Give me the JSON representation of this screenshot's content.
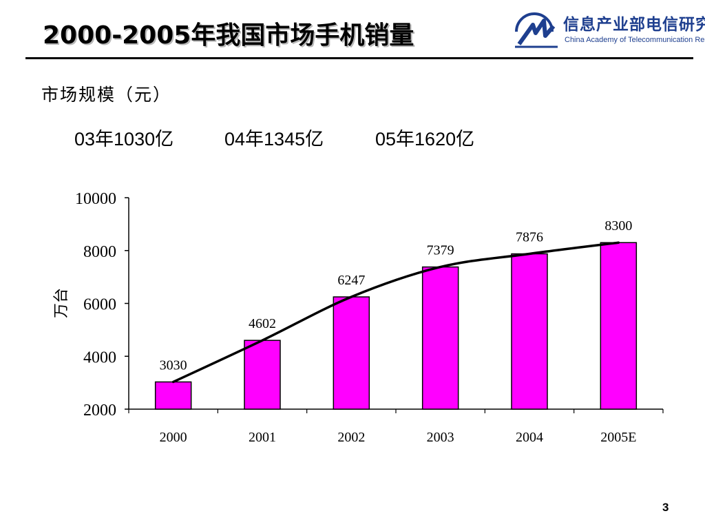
{
  "slide": {
    "title": "2000-2005年我国市场手机销量",
    "subheading": "市场规模（元）",
    "stats": [
      "03年1030亿",
      "04年1345亿",
      "05年1620亿"
    ],
    "page_number": "3"
  },
  "logo": {
    "name_cn": "信息产业部电信研究院",
    "name_en": "China Academy of Telecommunication Research",
    "color": "#1e3f8f"
  },
  "chart_data": {
    "type": "bar",
    "categories": [
      "2000",
      "2001",
      "2002",
      "2003",
      "2004",
      "2005E"
    ],
    "values": [
      3030,
      4602,
      6247,
      7379,
      7876,
      8300
    ],
    "data_labels": [
      "3030",
      "4602",
      "6247",
      "7379",
      "7876",
      "8300"
    ],
    "ylabel": "万台",
    "xlabel": "",
    "ylim": [
      2000,
      10000
    ],
    "yticks": [
      2000,
      4000,
      6000,
      8000,
      10000
    ],
    "ytick_labels": [
      "2000",
      "4000",
      "6000",
      "8000",
      "10000"
    ],
    "trend_line": true,
    "grid": false,
    "bar_color": "#ff00ff",
    "bar_edge_color": "#000000",
    "trend_color": "#000000"
  }
}
